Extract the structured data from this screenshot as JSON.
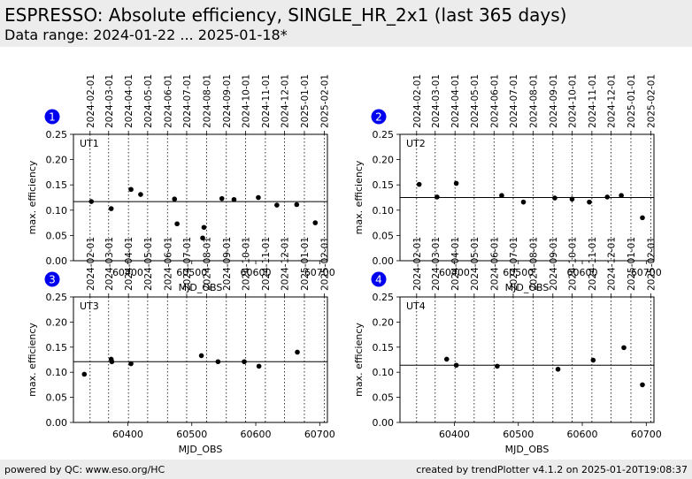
{
  "header": {
    "title": "ESPRESSO: Absolute efficiency, SINGLE_HR_2x1 (last 365 days)",
    "subtitle": "Data range: 2024-01-22 ... 2025-01-18*"
  },
  "footer": {
    "left": "powered by QC: www.eso.org/HC",
    "right": "created by trendPlotter v4.1.2 on 2025-01-20T19:08:37"
  },
  "colors": {
    "marker": "#000000",
    "badge": "#0000ee",
    "badge_text": "#ffffff",
    "panel_bg": "#ffffff",
    "header_bg": "#ececec"
  },
  "chart_data": [
    {
      "type": "scatter",
      "badge": "1",
      "panel_label": "UT1",
      "xlabel": "MJD_OBS",
      "ylabel": "max. efficiency",
      "xlim": [
        60315,
        60712
      ],
      "ylim": [
        0.0,
        0.25
      ],
      "xticks": [
        60400,
        60500,
        60600,
        60700
      ],
      "yticks": [
        0.0,
        0.05,
        0.1,
        0.15,
        0.2,
        0.25
      ],
      "date_ticks": {
        "labels": [
          "2024-02-01",
          "2024-03-01",
          "2024-04-01",
          "2024-05-01",
          "2024-06-01",
          "2024-07-01",
          "2024-08-01",
          "2024-09-01",
          "2024-10-01",
          "2024-11-01",
          "2024-12-01",
          "2025-01-01",
          "2025-02-01"
        ],
        "mjd": [
          60341,
          60370,
          60401,
          60431,
          60462,
          60492,
          60523,
          60554,
          60584,
          60615,
          60645,
          60676,
          60707
        ]
      },
      "reference_line": 0.117,
      "x": [
        60343,
        60374,
        60405,
        60420,
        60477,
        60473,
        60517,
        60519,
        60547,
        60566,
        60604,
        60633,
        60664,
        60693
      ],
      "y": [
        0.117,
        0.103,
        0.141,
        0.131,
        0.073,
        0.122,
        0.045,
        0.066,
        0.123,
        0.121,
        0.125,
        0.11,
        0.111,
        0.075
      ]
    },
    {
      "type": "scatter",
      "badge": "2",
      "panel_label": "UT2",
      "xlabel": "MJD_OBS",
      "ylabel": "max. efficiency",
      "xlim": [
        60315,
        60712
      ],
      "ylim": [
        0.0,
        0.25
      ],
      "xticks": [
        60400,
        60500,
        60600,
        60700
      ],
      "yticks": [
        0.0,
        0.05,
        0.1,
        0.15,
        0.2,
        0.25
      ],
      "date_ticks": {
        "labels": [
          "2024-02-01",
          "2024-03-01",
          "2024-04-01",
          "2024-05-01",
          "2024-06-01",
          "2024-07-01",
          "2024-08-01",
          "2024-09-01",
          "2024-10-01",
          "2024-11-01",
          "2024-12-01",
          "2025-01-01",
          "2025-02-01"
        ],
        "mjd": [
          60341,
          60370,
          60401,
          60431,
          60462,
          60492,
          60523,
          60554,
          60584,
          60615,
          60645,
          60676,
          60707
        ]
      },
      "reference_line": 0.125,
      "x": [
        60345,
        60373,
        60403,
        60474,
        60508,
        60557,
        60584,
        60611,
        60639,
        60661,
        60694
      ],
      "y": [
        0.151,
        0.126,
        0.153,
        0.129,
        0.116,
        0.124,
        0.122,
        0.116,
        0.126,
        0.129,
        0.085
      ]
    },
    {
      "type": "scatter",
      "badge": "3",
      "panel_label": "UT3",
      "xlabel": "MJD_OBS",
      "ylabel": "max. efficiency",
      "xlim": [
        60315,
        60712
      ],
      "ylim": [
        0.0,
        0.25
      ],
      "xticks": [
        60400,
        60500,
        60600,
        60700
      ],
      "yticks": [
        0.0,
        0.05,
        0.1,
        0.15,
        0.2,
        0.25
      ],
      "date_ticks": {
        "labels": [
          "2024-02-01",
          "2024-03-01",
          "2024-04-01",
          "2024-05-01",
          "2024-06-01",
          "2024-07-01",
          "2024-08-01",
          "2024-09-01",
          "2024-10-01",
          "2024-11-01",
          "2024-12-01",
          "2025-01-01",
          "2025-02-01"
        ],
        "mjd": [
          60341,
          60370,
          60401,
          60431,
          60462,
          60492,
          60523,
          60554,
          60584,
          60615,
          60645,
          60676,
          60707
        ]
      },
      "reference_line": 0.121,
      "x": [
        60332,
        60374,
        60375,
        60405,
        60515,
        60541,
        60582,
        60605,
        60665
      ],
      "y": [
        0.096,
        0.126,
        0.121,
        0.117,
        0.133,
        0.121,
        0.121,
        0.112,
        0.14
      ]
    },
    {
      "type": "scatter",
      "badge": "4",
      "panel_label": "UT4",
      "xlabel": "MJD_OBS",
      "ylabel": "max. efficiency",
      "xlim": [
        60315,
        60712
      ],
      "ylim": [
        0.0,
        0.25
      ],
      "xticks": [
        60400,
        60500,
        60600,
        60700
      ],
      "yticks": [
        0.0,
        0.05,
        0.1,
        0.15,
        0.2,
        0.25
      ],
      "date_ticks": {
        "labels": [
          "2024-02-01",
          "2024-03-01",
          "2024-04-01",
          "2024-05-01",
          "2024-06-01",
          "2024-07-01",
          "2024-08-01",
          "2024-09-01",
          "2024-10-01",
          "2024-11-01",
          "2024-12-01",
          "2025-01-01",
          "2025-02-01"
        ],
        "mjd": [
          60341,
          60370,
          60401,
          60431,
          60462,
          60492,
          60523,
          60554,
          60584,
          60615,
          60645,
          60676,
          60707
        ]
      },
      "reference_line": 0.114,
      "x": [
        60388,
        60403,
        60467,
        60562,
        60617,
        60665,
        60694
      ],
      "y": [
        0.126,
        0.114,
        0.112,
        0.106,
        0.124,
        0.149,
        0.075
      ]
    }
  ]
}
